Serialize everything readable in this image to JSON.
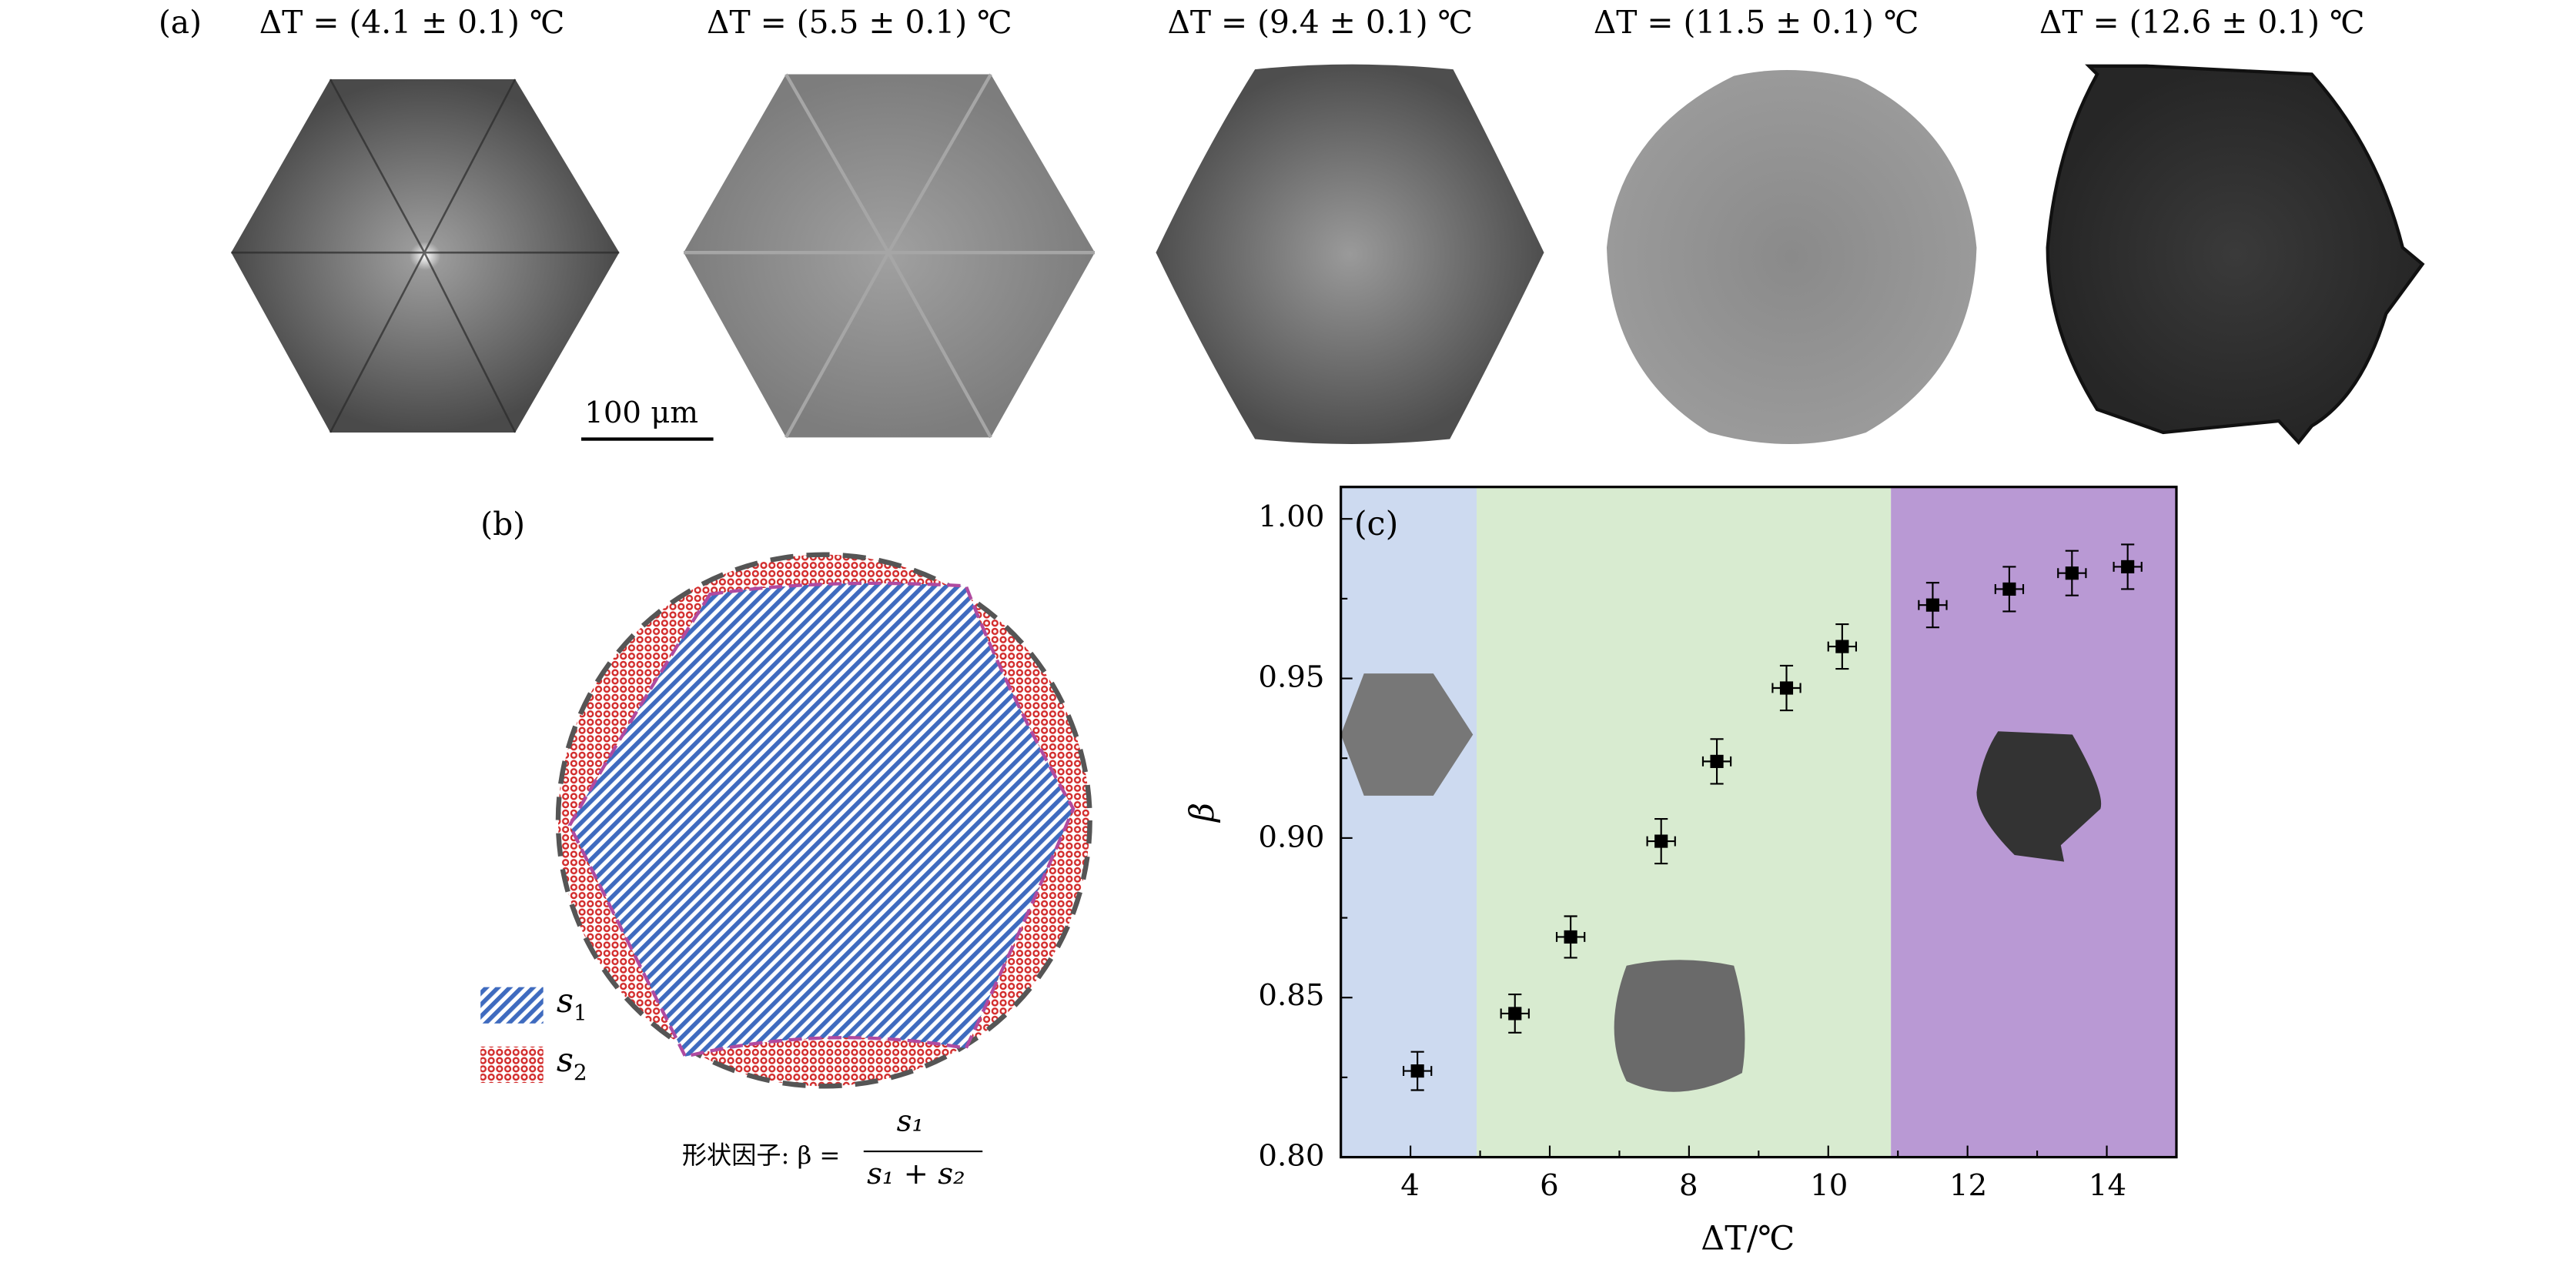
{
  "panel_a": {
    "label": "(a)",
    "crystals": [
      {
        "caption": "ΔT = (4.1 ± 0.1) ℃",
        "shape": "hexagonal-dendrite",
        "tone": "#6e6e6e"
      },
      {
        "caption": "ΔT = (5.5 ± 0.1) ℃",
        "shape": "hexagonal-faceted",
        "tone": "#8a8a8a"
      },
      {
        "caption": "ΔT = (9.4 ± 0.1) ℃",
        "shape": "rounded-hexagon",
        "tone": "#6a6a6a"
      },
      {
        "caption": "ΔT = (11.5 ± 0.1) ℃",
        "shape": "near-circular",
        "tone": "#888888"
      },
      {
        "caption": "ΔT = (12.6 ± 0.1) ℃",
        "shape": "irregular-dark",
        "tone": "#2e2e2e"
      }
    ],
    "scale_bar": "100 μm"
  },
  "panel_b": {
    "label": "(b)",
    "legend": [
      {
        "symbol": "s",
        "sub": "1",
        "color": "#3f6bbf"
      },
      {
        "symbol": "s",
        "sub": "2",
        "color": "#d22a2a"
      }
    ],
    "formula": {
      "prefix": "形状因子: β =",
      "numerator": "s₁",
      "denominator": "s₁ + s₂"
    }
  },
  "chart_data": {
    "type": "scatter",
    "panel_label": "(c)",
    "xlabel": "ΔT/℃",
    "ylabel": "β",
    "xlim": [
      3,
      15
    ],
    "ylim": [
      0.8,
      1.01
    ],
    "xticks": [
      4,
      6,
      8,
      10,
      12,
      14
    ],
    "yticks": [
      0.8,
      0.85,
      0.9,
      0.95,
      1.0
    ],
    "ytick_labels": [
      "0.80",
      "0.85",
      "0.90",
      "0.95",
      "1.00"
    ],
    "grid": false,
    "regions": [
      {
        "from": 3,
        "to": 4.95,
        "color": "#cddaf0"
      },
      {
        "from": 4.95,
        "to": 10.9,
        "color": "#d8ebd0"
      },
      {
        "from": 10.9,
        "to": 15,
        "color": "#b999d4"
      }
    ],
    "points": [
      {
        "x": 4.1,
        "y": 0.827,
        "xerr": 0.2,
        "yerr": 0.006
      },
      {
        "x": 5.5,
        "y": 0.845,
        "xerr": 0.2,
        "yerr": 0.006
      },
      {
        "x": 6.3,
        "y": 0.869,
        "xerr": 0.2,
        "yerr": 0.0065
      },
      {
        "x": 7.6,
        "y": 0.899,
        "xerr": 0.2,
        "yerr": 0.007
      },
      {
        "x": 8.4,
        "y": 0.924,
        "xerr": 0.2,
        "yerr": 0.007
      },
      {
        "x": 9.4,
        "y": 0.947,
        "xerr": 0.2,
        "yerr": 0.007
      },
      {
        "x": 10.2,
        "y": 0.96,
        "xerr": 0.2,
        "yerr": 0.007
      },
      {
        "x": 11.5,
        "y": 0.973,
        "xerr": 0.2,
        "yerr": 0.007
      },
      {
        "x": 12.6,
        "y": 0.978,
        "xerr": 0.2,
        "yerr": 0.007
      },
      {
        "x": 13.5,
        "y": 0.983,
        "xerr": 0.2,
        "yerr": 0.007
      },
      {
        "x": 14.3,
        "y": 0.985,
        "xerr": 0.2,
        "yerr": 0.007
      }
    ]
  }
}
